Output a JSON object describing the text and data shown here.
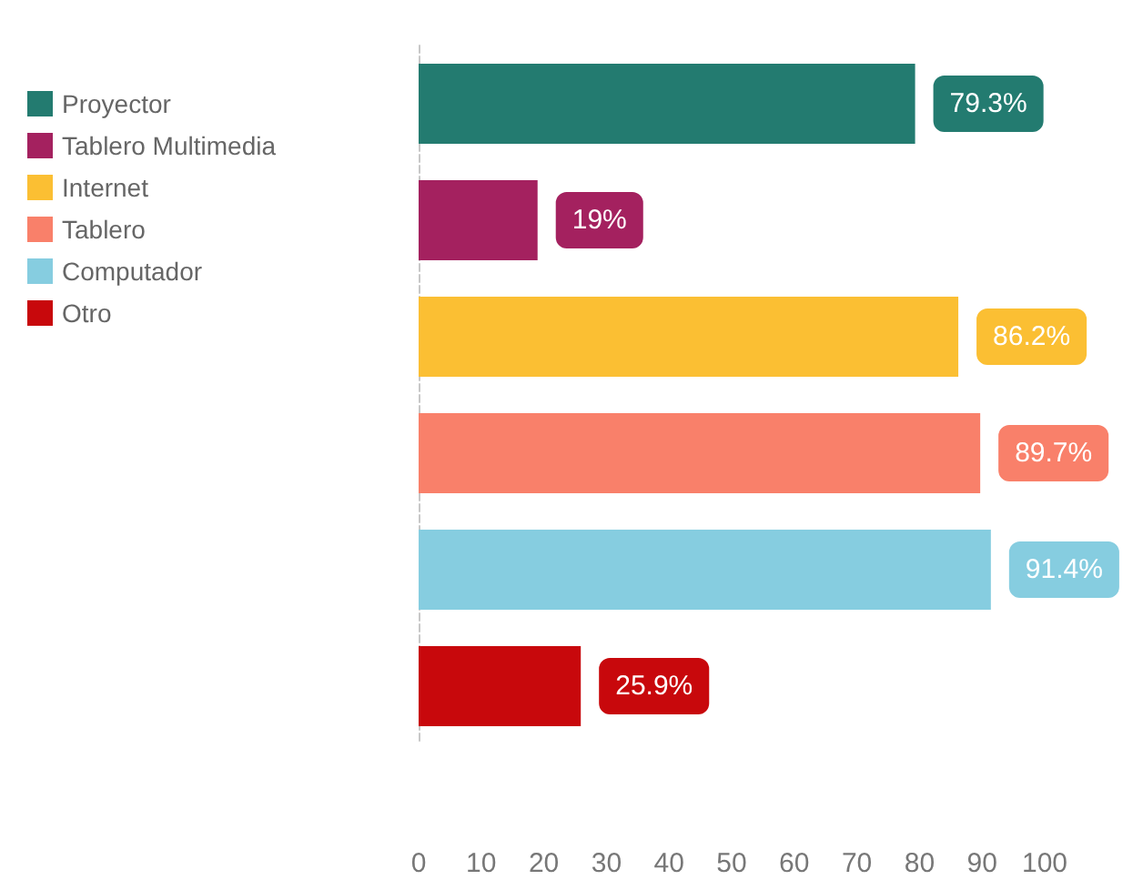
{
  "chart_data": {
    "type": "bar",
    "orientation": "horizontal",
    "categories": [
      null,
      null,
      null,
      null,
      null,
      null
    ],
    "series": [
      {
        "name": "Proyector",
        "color": "#237b70",
        "values": [
          79.3,
          null,
          null,
          null,
          null,
          null
        ],
        "value_labels": [
          "79.3%",
          null,
          null,
          null,
          null,
          null
        ]
      },
      {
        "name": "Tablero Multimedia",
        "color": "#a4215f",
        "values": [
          null,
          19,
          null,
          null,
          null,
          null
        ],
        "value_labels": [
          null,
          "19%",
          null,
          null,
          null,
          null
        ]
      },
      {
        "name": "Internet",
        "color": "#fbbf33",
        "values": [
          null,
          null,
          86.2,
          null,
          null,
          null
        ],
        "value_labels": [
          null,
          null,
          "86.2%",
          null,
          null,
          null
        ]
      },
      {
        "name": "Tablero",
        "color": "#f9806a",
        "values": [
          null,
          null,
          null,
          89.7,
          null,
          null
        ],
        "value_labels": [
          null,
          null,
          null,
          "89.7%",
          null,
          null
        ]
      },
      {
        "name": "Computador",
        "color": "#86cde0",
        "values": [
          null,
          null,
          null,
          null,
          91.4,
          null
        ],
        "value_labels": [
          null,
          null,
          null,
          null,
          "91.4%",
          null
        ]
      },
      {
        "name": "Otro",
        "color": "#c8080c",
        "values": [
          null,
          null,
          null,
          null,
          null,
          25.9
        ],
        "value_labels": [
          null,
          null,
          null,
          null,
          null,
          "25.9%"
        ]
      }
    ],
    "xlim": [
      0,
      100
    ],
    "xticks": [
      0,
      10,
      20,
      30,
      40,
      50,
      60,
      70,
      80,
      90,
      100
    ],
    "legend": "left"
  }
}
